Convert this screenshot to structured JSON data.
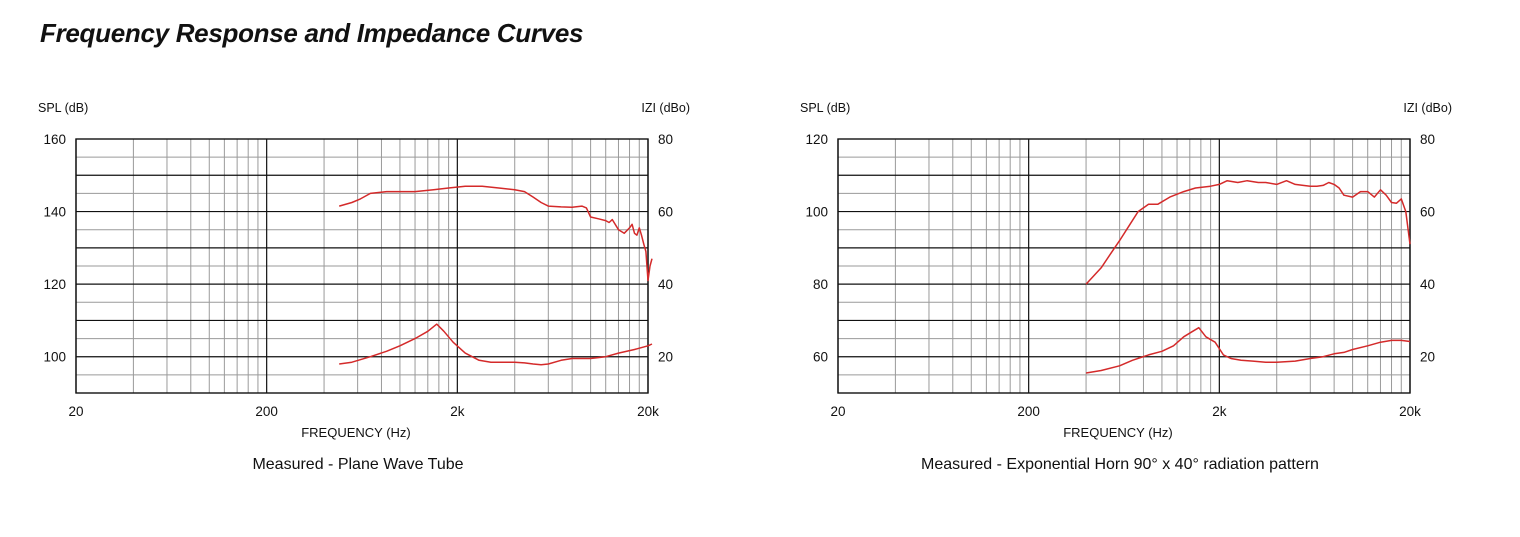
{
  "page": {
    "title": "Frequency Response and Impedance Curves"
  },
  "colors": {
    "curve": "#d42a2a",
    "grid_major": "#111111",
    "grid_minor": "#9a9a9a"
  },
  "chart_data": [
    {
      "type": "line",
      "caption": "Measured - Plane Wave Tube",
      "xlabel": "FREQUENCY (Hz)",
      "x_scale": "log",
      "xlim": [
        20,
        20000
      ],
      "x_ticks": [
        20,
        200,
        2000,
        20000
      ],
      "x_tick_labels": [
        "20",
        "200",
        "2k",
        "20k"
      ],
      "ylabel_left": "SPL (dB)",
      "ylim_left": [
        90,
        160
      ],
      "y_ticks_left": [
        160,
        140,
        120,
        100
      ],
      "ylabel_right": "IZI (dBo)",
      "ylim_right": [
        10,
        80
      ],
      "y_ticks_right": [
        80,
        60,
        40,
        20
      ],
      "grid": true,
      "series": [
        {
          "axis": "left",
          "x": [
            480,
            560,
            620,
            700,
            850,
            1000,
            1200,
            1500,
            1800,
            2200,
            2700,
            3300,
            4000,
            4500,
            5000,
            5500,
            6000,
            7000,
            8000,
            9000,
            9500,
            10000,
            11000,
            12000,
            12500,
            13000,
            14000,
            15000,
            16000,
            16500,
            17000,
            17500,
            18000,
            18500,
            19000,
            19500,
            20000,
            20500,
            21000
          ],
          "y": [
            141.5,
            142.5,
            143.5,
            145.0,
            145.5,
            145.5,
            145.5,
            146.0,
            146.5,
            147.0,
            147.0,
            146.5,
            146.0,
            145.5,
            144.0,
            142.5,
            141.5,
            141.3,
            141.2,
            141.5,
            141.0,
            138.5,
            138.0,
            137.5,
            137.0,
            137.8,
            135.0,
            134.0,
            135.5,
            136.5,
            134.0,
            133.5,
            135.5,
            133.5,
            131.0,
            129.0,
            121.0,
            125.0,
            127.0
          ]
        },
        {
          "axis": "left",
          "x": [
            480,
            560,
            700,
            850,
            1000,
            1200,
            1400,
            1560,
            1700,
            1900,
            2200,
            2600,
            3000,
            3500,
            4000,
            4500,
            5000,
            5500,
            6000,
            7000,
            8000,
            9000,
            10000,
            12000,
            14000,
            17000,
            20000,
            21000
          ],
          "y": [
            98.0,
            98.5,
            100.0,
            101.5,
            103.0,
            105.0,
            107.0,
            109.0,
            107.0,
            104.0,
            101.0,
            99.0,
            98.5,
            98.5,
            98.5,
            98.3,
            98.0,
            97.8,
            98.0,
            99.0,
            99.5,
            99.5,
            99.5,
            100.0,
            101.0,
            102.0,
            103.0,
            103.5
          ]
        }
      ]
    },
    {
      "type": "line",
      "caption": "Measured - Exponential Horn 90° x 40° radiation pattern",
      "xlabel": "FREQUENCY (Hz)",
      "x_scale": "log",
      "xlim": [
        20,
        20000
      ],
      "x_ticks": [
        20,
        200,
        2000,
        20000
      ],
      "x_tick_labels": [
        "20",
        "200",
        "2k",
        "20k"
      ],
      "ylabel_left": "SPL (dB)",
      "ylim_left": [
        50,
        120
      ],
      "y_ticks_left": [
        120,
        100,
        80,
        60
      ],
      "ylabel_right": "IZI (dBo)",
      "ylim_right": [
        10,
        80
      ],
      "y_ticks_right": [
        80,
        60,
        40,
        20
      ],
      "grid": true,
      "series": [
        {
          "axis": "left",
          "x": [
            400,
            480,
            540,
            600,
            680,
            750,
            850,
            950,
            1100,
            1300,
            1500,
            1800,
            2000,
            2200,
            2500,
            2800,
            3200,
            3500,
            4000,
            4500,
            5000,
            5500,
            6000,
            6500,
            7000,
            7500,
            8000,
            8500,
            9000,
            10000,
            11000,
            12000,
            13000,
            14000,
            15000,
            16000,
            17000,
            18000,
            19000,
            20000
          ],
          "y": [
            80.0,
            84.5,
            88.5,
            92.0,
            96.5,
            100.0,
            102.0,
            102.0,
            104.0,
            105.5,
            106.5,
            107.0,
            107.5,
            108.5,
            108.0,
            108.5,
            108.0,
            108.0,
            107.5,
            108.5,
            107.5,
            107.2,
            107.0,
            107.0,
            107.2,
            108.0,
            107.5,
            106.5,
            104.5,
            104.0,
            105.5,
            105.5,
            104.0,
            106.0,
            104.5,
            102.5,
            102.3,
            103.5,
            100.0,
            91.0
          ]
        },
        {
          "axis": "left",
          "x": [
            400,
            480,
            600,
            700,
            850,
            1000,
            1150,
            1300,
            1450,
            1560,
            1700,
            1900,
            2100,
            2300,
            2600,
            3000,
            3500,
            4000,
            5000,
            6000,
            7000,
            8000,
            9000,
            10000,
            12000,
            14000,
            16000,
            18000,
            20000
          ],
          "y": [
            55.5,
            56.2,
            57.5,
            59.0,
            60.5,
            61.5,
            63.0,
            65.5,
            67.0,
            68.0,
            65.5,
            64.0,
            60.5,
            59.5,
            59.0,
            58.8,
            58.5,
            58.5,
            58.8,
            59.5,
            60.0,
            60.8,
            61.2,
            62.0,
            63.0,
            64.0,
            64.5,
            64.5,
            64.2
          ]
        }
      ]
    }
  ]
}
